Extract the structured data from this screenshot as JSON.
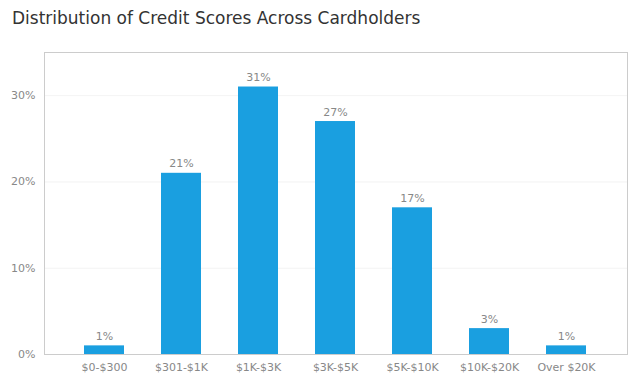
{
  "chart_data": {
    "type": "bar",
    "title": "Distribution of Credit Scores Across Cardholders",
    "categories": [
      "$0-$300",
      "$301-$1K",
      "$1K-$3K",
      "$3K-$5K",
      "$5K-$10K",
      "$10K-$20K",
      "Over $20K"
    ],
    "values": [
      1,
      21,
      31,
      27,
      17,
      3,
      1
    ],
    "value_labels": [
      "1%",
      "21%",
      "31%",
      "27%",
      "17%",
      "3%",
      "1%"
    ],
    "data_labels": true,
    "color": "#1a9fe0",
    "ylim": [
      0,
      35
    ],
    "yticks": [
      {
        "value": 0,
        "label": "0%"
      },
      {
        "value": 10,
        "label": "10%"
      },
      {
        "value": 20,
        "label": "20%"
      },
      {
        "value": 30,
        "label": "30%"
      }
    ],
    "grid": true
  }
}
